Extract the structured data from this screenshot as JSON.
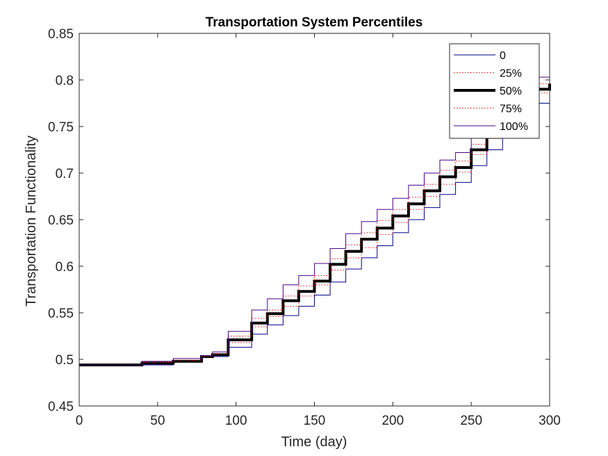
{
  "chart_data": {
    "type": "line",
    "title": "Transportation System Percentiles",
    "xlabel": "Time (day)",
    "ylabel": "Transportation Functionality",
    "xlim": [
      0,
      300
    ],
    "ylim": [
      0.45,
      0.85
    ],
    "xticks": [
      "0",
      "50",
      "100",
      "150",
      "200",
      "250",
      "300"
    ],
    "yticks": [
      "0.45",
      "0.5",
      "0.55",
      "0.6",
      "0.65",
      "0.7",
      "0.75",
      "0.8",
      "0.85"
    ],
    "grid": false,
    "legend_position": "top-right",
    "series": [
      {
        "name": "0",
        "color": "#00008B",
        "style": "solid",
        "x": [
          0,
          40,
          60,
          78,
          85,
          95,
          110,
          120,
          130,
          140,
          150,
          160,
          170,
          180,
          190,
          200,
          210,
          220,
          230,
          240,
          250,
          260,
          270,
          280,
          290,
          300
        ],
        "y": [
          0.494,
          0.494,
          0.497,
          0.502,
          0.503,
          0.513,
          0.527,
          0.537,
          0.547,
          0.557,
          0.569,
          0.583,
          0.597,
          0.609,
          0.622,
          0.636,
          0.65,
          0.663,
          0.677,
          0.69,
          0.708,
          0.725,
          0.742,
          0.758,
          0.775,
          0.788
        ]
      },
      {
        "name": "25%",
        "color": "#FF0000",
        "style": "dotted",
        "x": [
          0,
          40,
          60,
          78,
          85,
          95,
          110,
          120,
          130,
          140,
          150,
          160,
          170,
          180,
          190,
          200,
          210,
          220,
          230,
          240,
          250,
          260,
          270,
          280,
          290,
          300
        ],
        "y": [
          0.494,
          0.495,
          0.498,
          0.503,
          0.505,
          0.518,
          0.535,
          0.546,
          0.557,
          0.568,
          0.58,
          0.596,
          0.609,
          0.62,
          0.634,
          0.647,
          0.661,
          0.675,
          0.688,
          0.701,
          0.72,
          0.737,
          0.756,
          0.771,
          0.786,
          0.793
        ]
      },
      {
        "name": "50%",
        "color": "#000000",
        "style": "solid-thick",
        "x": [
          0,
          40,
          60,
          78,
          85,
          95,
          110,
          120,
          130,
          140,
          150,
          160,
          170,
          180,
          190,
          200,
          210,
          220,
          230,
          240,
          250,
          260,
          270,
          280,
          290,
          300
        ],
        "y": [
          0.494,
          0.496,
          0.498,
          0.503,
          0.505,
          0.521,
          0.539,
          0.549,
          0.563,
          0.573,
          0.584,
          0.602,
          0.616,
          0.629,
          0.641,
          0.654,
          0.667,
          0.681,
          0.696,
          0.706,
          0.725,
          0.742,
          0.76,
          0.776,
          0.79,
          0.796
        ]
      },
      {
        "name": "75%",
        "color": "#FF0000",
        "style": "dotted",
        "x": [
          0,
          40,
          60,
          78,
          85,
          95,
          110,
          120,
          130,
          140,
          150,
          160,
          170,
          180,
          190,
          200,
          210,
          220,
          230,
          240,
          250,
          260,
          270,
          280,
          290,
          300
        ],
        "y": [
          0.494,
          0.497,
          0.499,
          0.503,
          0.506,
          0.525,
          0.544,
          0.553,
          0.568,
          0.579,
          0.59,
          0.608,
          0.623,
          0.636,
          0.649,
          0.661,
          0.674,
          0.688,
          0.703,
          0.713,
          0.731,
          0.749,
          0.767,
          0.783,
          0.796,
          0.8
        ]
      },
      {
        "name": "100%",
        "color": "#4B0082",
        "style": "solid",
        "x": [
          0,
          40,
          60,
          78,
          85,
          95,
          110,
          120,
          130,
          140,
          150,
          160,
          170,
          180,
          190,
          200,
          210,
          220,
          230,
          240,
          250,
          260,
          270,
          280,
          290,
          300
        ],
        "y": [
          0.494,
          0.498,
          0.501,
          0.504,
          0.508,
          0.53,
          0.553,
          0.565,
          0.58,
          0.59,
          0.603,
          0.619,
          0.635,
          0.648,
          0.661,
          0.673,
          0.687,
          0.7,
          0.714,
          0.722,
          0.739,
          0.757,
          0.775,
          0.791,
          0.803,
          0.806
        ]
      }
    ]
  }
}
